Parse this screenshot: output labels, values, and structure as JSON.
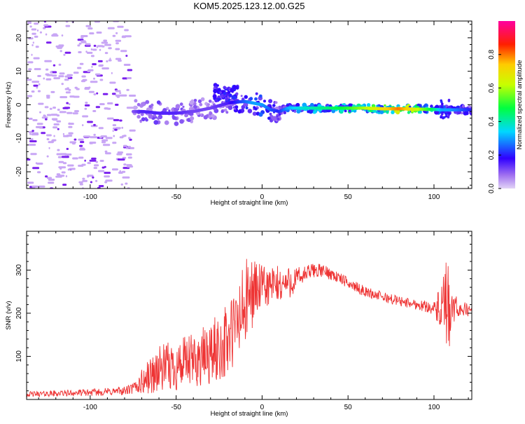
{
  "figure_title": "KOM5.2025.123.12.00.G25",
  "colors": {
    "axis": "#000000",
    "snr_line": "#ee3333",
    "scatter_light": "#c8a6f5",
    "scatter_dark": "#7a20ee"
  },
  "chart_data": [
    {
      "type": "heatmap",
      "title": "KOM5.2025.123.12.00.G25",
      "xlabel": "Height of straight line (km)",
      "ylabel": "Frequency (Hz)",
      "xlim": [
        -137,
        122
      ],
      "ylim": [
        -25,
        25
      ],
      "x_ticks": [
        -100,
        -50,
        0,
        50,
        100
      ],
      "y_ticks": [
        -20,
        -10,
        0,
        10,
        20
      ],
      "grid": false,
      "colorbar": {
        "label": "Normalized spectral amplitude",
        "range": [
          0,
          1
        ],
        "ticks": [
          0.0,
          0.2,
          0.4,
          0.6,
          0.8
        ],
        "colormap": "rainbow (magenta-blue-cyan-green-yellow-red-pink)"
      },
      "trace": {
        "x": [
          -75,
          -70,
          -60,
          -50,
          -40,
          -30,
          -20,
          -15,
          -10,
          -5,
          0,
          5,
          10,
          15,
          20,
          30,
          40,
          50,
          60,
          70,
          80,
          90,
          100,
          105,
          110,
          122
        ],
        "frequency": [
          -2,
          -2,
          -2.5,
          -2.5,
          -2,
          -1,
          0.5,
          0.8,
          1,
          0.5,
          0,
          -1.5,
          -2,
          -1,
          -1,
          -1,
          -1,
          -1,
          -1,
          -1.2,
          -1.2,
          -1.3,
          -1.4,
          -1.5,
          -1.5,
          -1.5
        ],
        "amplitude": [
          0.1,
          0.15,
          0.15,
          0.15,
          0.12,
          0.12,
          0.15,
          0.2,
          0.25,
          0.3,
          0.3,
          0.25,
          0.2,
          0.3,
          0.35,
          0.4,
          0.45,
          0.5,
          0.6,
          0.7,
          0.8,
          0.65,
          0.45,
          0.3,
          0.3,
          0.2
        ]
      },
      "noise_region_x": [
        -137,
        -77
      ],
      "noise_frequency_range": [
        -25,
        25
      ]
    },
    {
      "type": "line",
      "xlabel": "Height of straight line (km)",
      "ylabel": "SNR (v/v)",
      "xlim": [
        -137,
        122
      ],
      "ylim": [
        0,
        390
      ],
      "x_ticks": [
        -100,
        -50,
        0,
        50,
        100
      ],
      "y_ticks": [
        100,
        200,
        300
      ],
      "grid": false,
      "series": [
        {
          "x": [
            -137,
            -120,
            -100,
            -80,
            -75,
            -70,
            -65,
            -60,
            -50,
            -40,
            -30,
            -20,
            -15,
            -10,
            -5,
            0,
            5,
            10,
            15,
            20,
            25,
            30,
            35,
            40,
            50,
            60,
            70,
            80,
            90,
            100,
            104,
            106,
            108,
            110,
            115,
            122
          ],
          "mean": [
            12,
            14,
            16,
            20,
            25,
            40,
            55,
            70,
            78,
            88,
            105,
            135,
            170,
            215,
            255,
            260,
            262,
            265,
            270,
            278,
            290,
            300,
            298,
            292,
            270,
            250,
            238,
            228,
            220,
            212,
            205,
            200,
            195,
            205,
            212,
            205
          ],
          "spread": [
            6,
            7,
            8,
            10,
            14,
            30,
            45,
            55,
            60,
            65,
            75,
            90,
            100,
            110,
            80,
            50,
            50,
            45,
            40,
            30,
            20,
            18,
            15,
            15,
            12,
            12,
            12,
            12,
            12,
            15,
            60,
            110,
            130,
            45,
            20,
            12
          ]
        }
      ]
    }
  ]
}
